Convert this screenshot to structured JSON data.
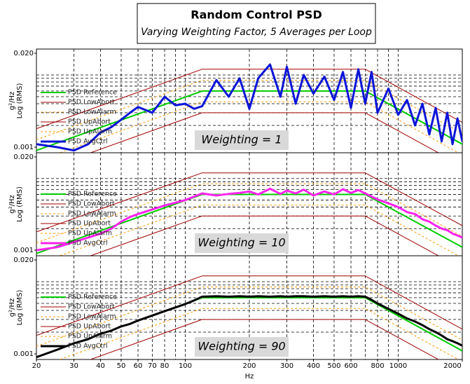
{
  "header": {
    "title": "Random Control PSD",
    "subtitle": "Varying Weighting Factor, 5 Averages per Loop"
  },
  "chart_data": [
    {
      "type": "line",
      "annotation": "Weighting = 1",
      "ylabel": "Log (RMS)",
      "yunit": "g²/Hz",
      "xlim": [
        20,
        2000
      ],
      "ylim": [
        0.001,
        0.02
      ],
      "yticks": [
        {
          "value": 0.02,
          "label": "0.020"
        },
        0.001
      ],
      "log_x": true,
      "log_y": true,
      "grid": true,
      "xgrid": [
        20,
        30,
        40,
        50,
        60,
        70,
        80,
        90,
        100,
        200,
        300,
        400,
        500,
        600,
        700,
        800,
        900,
        1000,
        2000
      ],
      "ygrid": [
        0.002,
        0.003,
        0.004,
        0.005,
        0.006,
        0.007,
        0.008,
        0.009,
        0.01
      ],
      "x": [
        20,
        25,
        30,
        35,
        40,
        45,
        50,
        55,
        60,
        70,
        80,
        90,
        100,
        110,
        120,
        140,
        160,
        180,
        200,
        220,
        250,
        280,
        300,
        330,
        360,
        400,
        450,
        500,
        550,
        600,
        650,
        700,
        750,
        800,
        900,
        1000,
        1100,
        1200,
        1300,
        1400,
        1500,
        1600,
        1700,
        1800,
        1900,
        2000
      ],
      "series": [
        {
          "name": "PSD Reference",
          "color": "#00cc00",
          "width": 2,
          "x": [
            20,
            120,
            700,
            2000
          ],
          "values": [
            0.0009,
            0.006,
            0.006,
            0.0011
          ]
        },
        {
          "name": "PSD LowAbort",
          "color": "#a00000",
          "width": 1,
          "x": [
            20,
            120,
            700,
            2000
          ],
          "values": [
            0.00045,
            0.003,
            0.003,
            0.00055
          ]
        },
        {
          "name": "PSD LowAlarm",
          "color": "#ff9900",
          "width": 1,
          "dash": true,
          "x": [
            20,
            120,
            700,
            2000
          ],
          "values": [
            0.00064,
            0.00426,
            0.00426,
            0.00078
          ]
        },
        {
          "name": "PSD UpAbort",
          "color": "#a00000",
          "width": 1,
          "x": [
            20,
            120,
            700,
            2000
          ],
          "values": [
            0.0018,
            0.012,
            0.012,
            0.0022
          ]
        },
        {
          "name": "PSD UpAlarm",
          "color": "#ff9900",
          "width": 1,
          "dash": true,
          "x": [
            20,
            120,
            700,
            2000
          ],
          "values": [
            0.00127,
            0.00846,
            0.00846,
            0.00155
          ]
        },
        {
          "name": "PSD AvgCtrl",
          "color": "#0a14d8",
          "width": 3,
          "values": [
            0.0011,
            0.001,
            0.0009,
            0.0011,
            0.0016,
            0.0019,
            0.0024,
            0.003,
            0.0036,
            0.003,
            0.005,
            0.0038,
            0.004,
            0.0034,
            0.0037,
            0.0085,
            0.005,
            0.009,
            0.0034,
            0.009,
            0.014,
            0.005,
            0.013,
            0.004,
            0.01,
            0.0055,
            0.0095,
            0.0045,
            0.011,
            0.0035,
            0.012,
            0.004,
            0.011,
            0.003,
            0.0065,
            0.0028,
            0.0045,
            0.002,
            0.004,
            0.0015,
            0.0035,
            0.0012,
            0.003,
            0.0011,
            0.0025,
            0.0012
          ]
        }
      ]
    },
    {
      "type": "line",
      "annotation": "Weighting = 10",
      "ylabel": "Log (RMS)",
      "yunit": "g²/Hz",
      "xlim": [
        20,
        2000
      ],
      "ylim": [
        0.001,
        0.02
      ],
      "yticks": [
        {
          "value": 0.02,
          "label": "0.020"
        },
        0.001
      ],
      "log_x": true,
      "log_y": true,
      "grid": true,
      "xgrid": [
        20,
        30,
        40,
        50,
        60,
        70,
        80,
        90,
        100,
        200,
        300,
        400,
        500,
        600,
        700,
        800,
        900,
        1000,
        2000
      ],
      "ygrid": [
        0.002,
        0.003,
        0.004,
        0.005,
        0.006,
        0.007,
        0.008,
        0.009,
        0.01
      ],
      "x": [
        20,
        25,
        30,
        35,
        40,
        45,
        50,
        55,
        60,
        70,
        80,
        90,
        100,
        110,
        120,
        140,
        160,
        180,
        200,
        220,
        250,
        280,
        300,
        330,
        360,
        400,
        450,
        500,
        550,
        600,
        650,
        700,
        750,
        800,
        900,
        1000,
        1100,
        1200,
        1300,
        1400,
        1500,
        1600,
        1700,
        1800,
        1900,
        2000
      ],
      "series": [
        {
          "name": "PSD Reference",
          "color": "#00cc00",
          "width": 2,
          "x": [
            20,
            120,
            700,
            2000
          ],
          "values": [
            0.0009,
            0.006,
            0.006,
            0.0011
          ]
        },
        {
          "name": "PSD LowAbort",
          "color": "#a00000",
          "width": 1,
          "x": [
            20,
            120,
            700,
            2000
          ],
          "values": [
            0.00045,
            0.003,
            0.003,
            0.00055
          ]
        },
        {
          "name": "PSD LowAlarm",
          "color": "#ff9900",
          "width": 1,
          "dash": true,
          "x": [
            20,
            120,
            700,
            2000
          ],
          "values": [
            0.00064,
            0.00426,
            0.00426,
            0.00078
          ]
        },
        {
          "name": "PSD UpAbort",
          "color": "#a00000",
          "width": 1,
          "x": [
            20,
            120,
            700,
            2000
          ],
          "values": [
            0.0018,
            0.012,
            0.012,
            0.0022
          ]
        },
        {
          "name": "PSD UpAlarm",
          "color": "#ff9900",
          "width": 1,
          "dash": true,
          "x": [
            20,
            120,
            700,
            2000
          ],
          "values": [
            0.00127,
            0.00846,
            0.00846,
            0.00155
          ]
        },
        {
          "name": "PSD AvgCtrl",
          "color": "#ff22ee",
          "width": 3,
          "values": [
            0.001,
            0.0011,
            0.0013,
            0.0015,
            0.0017,
            0.002,
            0.0025,
            0.0029,
            0.0032,
            0.0037,
            0.0042,
            0.0046,
            0.005,
            0.0056,
            0.0062,
            0.0058,
            0.0061,
            0.0063,
            0.0066,
            0.006,
            0.0072,
            0.0061,
            0.0068,
            0.0062,
            0.007,
            0.0058,
            0.0066,
            0.006,
            0.0071,
            0.0063,
            0.0069,
            0.0062,
            0.0056,
            0.0051,
            0.0045,
            0.004,
            0.0034,
            0.0032,
            0.0027,
            0.0025,
            0.0022,
            0.002,
            0.0019,
            0.0017,
            0.0016,
            0.0015
          ]
        }
      ]
    },
    {
      "type": "line",
      "annotation": "Weighting = 90",
      "ylabel": "Log (RMS)",
      "yunit": "g²/Hz",
      "xlabel": "Hz",
      "xlim": [
        20,
        2000
      ],
      "ylim": [
        0.001,
        0.02
      ],
      "yticks": [
        {
          "value": 0.02,
          "label": "0.020"
        },
        0.001
      ],
      "log_x": true,
      "log_y": true,
      "grid": true,
      "xticks": [
        20,
        30,
        40,
        50,
        60,
        70,
        80,
        100,
        200,
        300,
        400,
        500,
        600,
        800,
        1000,
        2000
      ],
      "xgrid": [
        20,
        30,
        40,
        50,
        60,
        70,
        80,
        90,
        100,
        200,
        300,
        400,
        500,
        600,
        700,
        800,
        900,
        1000,
        2000
      ],
      "ygrid": [
        0.002,
        0.003,
        0.004,
        0.005,
        0.006,
        0.007,
        0.008,
        0.009,
        0.01
      ],
      "x": [
        20,
        25,
        30,
        35,
        40,
        45,
        50,
        55,
        60,
        70,
        80,
        90,
        100,
        110,
        120,
        140,
        160,
        180,
        200,
        220,
        250,
        280,
        300,
        330,
        360,
        400,
        450,
        500,
        550,
        600,
        650,
        700,
        750,
        800,
        900,
        1000,
        1100,
        1200,
        1300,
        1400,
        1500,
        1600,
        1700,
        1800,
        1900,
        2000
      ],
      "series": [
        {
          "name": "PSD Reference",
          "color": "#00cc00",
          "width": 2,
          "x": [
            20,
            120,
            700,
            2000
          ],
          "values": [
            0.0009,
            0.006,
            0.006,
            0.0011
          ]
        },
        {
          "name": "PSD LowAbort",
          "color": "#a00000",
          "width": 1,
          "x": [
            20,
            120,
            700,
            2000
          ],
          "values": [
            0.00045,
            0.003,
            0.003,
            0.00055
          ]
        },
        {
          "name": "PSD LowAlarm",
          "color": "#ff9900",
          "width": 1,
          "dash": true,
          "x": [
            20,
            120,
            700,
            2000
          ],
          "values": [
            0.00064,
            0.00426,
            0.00426,
            0.00078
          ]
        },
        {
          "name": "PSD UpAbort",
          "color": "#a00000",
          "width": 1,
          "x": [
            20,
            120,
            700,
            2000
          ],
          "values": [
            0.0018,
            0.012,
            0.012,
            0.0022
          ]
        },
        {
          "name": "PSD UpAlarm",
          "color": "#ff9900",
          "width": 1,
          "dash": true,
          "x": [
            20,
            120,
            700,
            2000
          ],
          "values": [
            0.00127,
            0.00846,
            0.00846,
            0.00155
          ]
        },
        {
          "name": "PSD AvgCtrl",
          "color": "#000000",
          "width": 3,
          "values": [
            0.0009,
            0.00114,
            0.0014,
            0.0016,
            0.0019,
            0.0021,
            0.0024,
            0.0026,
            0.0029,
            0.0034,
            0.0039,
            0.0044,
            0.0049,
            0.0055,
            0.0062,
            0.0063,
            0.0062,
            0.0063,
            0.0062,
            0.0063,
            0.0062,
            0.0063,
            0.0062,
            0.0063,
            0.0063,
            0.0062,
            0.0063,
            0.0062,
            0.0063,
            0.0062,
            0.0063,
            0.0062,
            0.0056,
            0.005,
            0.0042,
            0.0036,
            0.0031,
            0.0028,
            0.0025,
            0.0022,
            0.002,
            0.0018,
            0.0016,
            0.0015,
            0.0014,
            0.0013
          ]
        }
      ]
    }
  ]
}
